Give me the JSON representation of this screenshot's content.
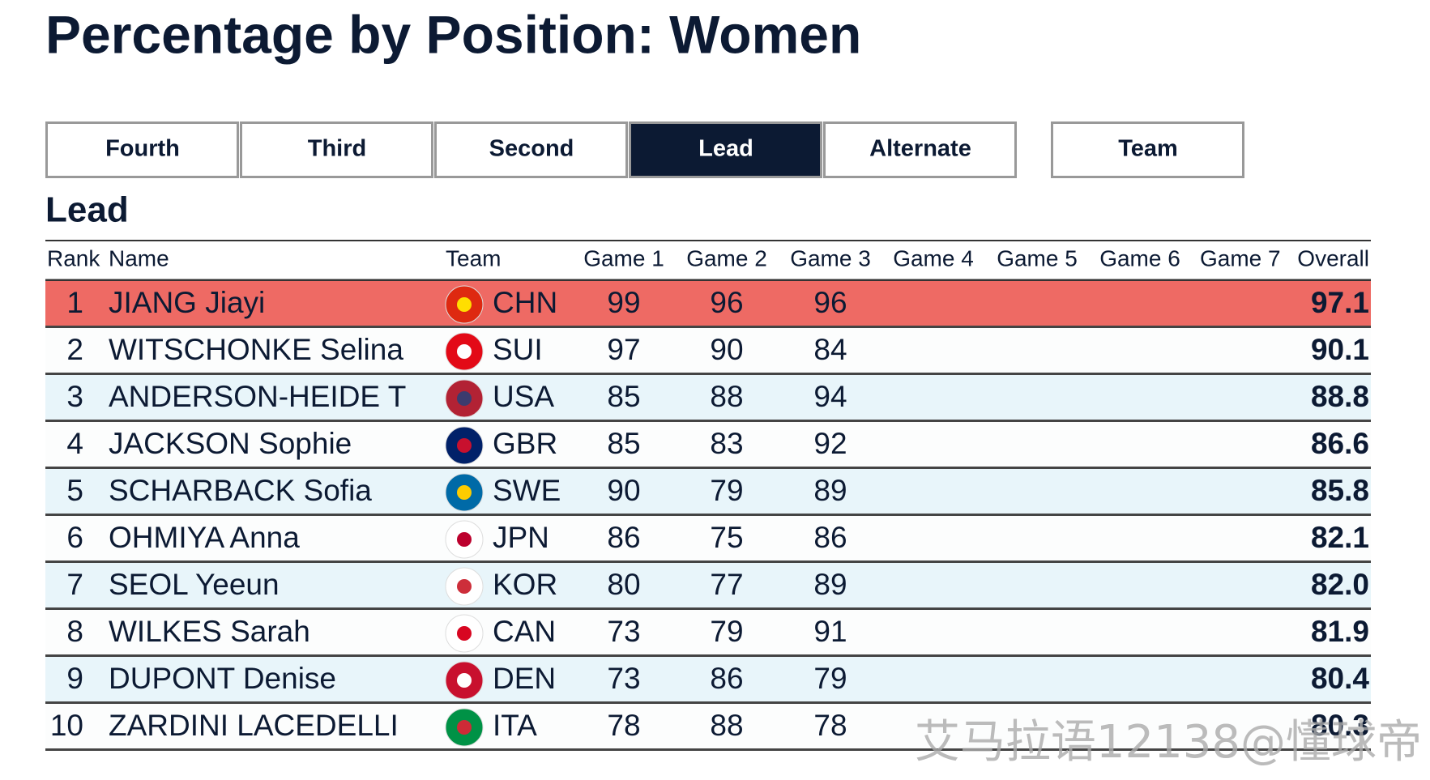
{
  "header": {
    "title": "Percentage by Position: Women"
  },
  "tabs": {
    "items": [
      "Fourth",
      "Third",
      "Second",
      "Lead",
      "Alternate",
      "Team"
    ],
    "active": 3
  },
  "section_title": "Lead",
  "table": {
    "columns": [
      "Rank",
      "Name",
      "Team",
      "Game 1",
      "Game 2",
      "Game 3",
      "Game 4",
      "Game 5",
      "Game 6",
      "Game 7",
      "Overall"
    ],
    "rows": [
      {
        "rank": 1,
        "name": "JIANG Jiayi",
        "team": "CHN",
        "games": [
          99,
          96,
          96
        ],
        "overall": "97.1"
      },
      {
        "rank": 2,
        "name": "WITSCHONKE Selina",
        "team": "SUI",
        "games": [
          97,
          90,
          84
        ],
        "overall": "90.1"
      },
      {
        "rank": 3,
        "name": "ANDERSON-HEIDE T",
        "team": "USA",
        "games": [
          85,
          88,
          94
        ],
        "overall": "88.8"
      },
      {
        "rank": 4,
        "name": "JACKSON Sophie",
        "team": "GBR",
        "games": [
          85,
          83,
          92
        ],
        "overall": "86.6"
      },
      {
        "rank": 5,
        "name": "SCHARBACK Sofia",
        "team": "SWE",
        "games": [
          90,
          79,
          89
        ],
        "overall": "85.8"
      },
      {
        "rank": 6,
        "name": "OHMIYA Anna",
        "team": "JPN",
        "games": [
          86,
          75,
          86
        ],
        "overall": "82.1"
      },
      {
        "rank": 7,
        "name": "SEOL Yeeun",
        "team": "KOR",
        "games": [
          80,
          77,
          89
        ],
        "overall": "82.0"
      },
      {
        "rank": 8,
        "name": "WILKES Sarah",
        "team": "CAN",
        "games": [
          73,
          79,
          91
        ],
        "overall": "81.9"
      },
      {
        "rank": 9,
        "name": "DUPONT Denise",
        "team": "DEN",
        "games": [
          73,
          86,
          79
        ],
        "overall": "80.4"
      },
      {
        "rank": 10,
        "name": "ZARDINI LACEDELLI",
        "team": "ITA",
        "games": [
          78,
          88,
          78
        ],
        "overall": "80.3"
      }
    ]
  },
  "watermark": "艾马拉语12138@懂球帝"
}
